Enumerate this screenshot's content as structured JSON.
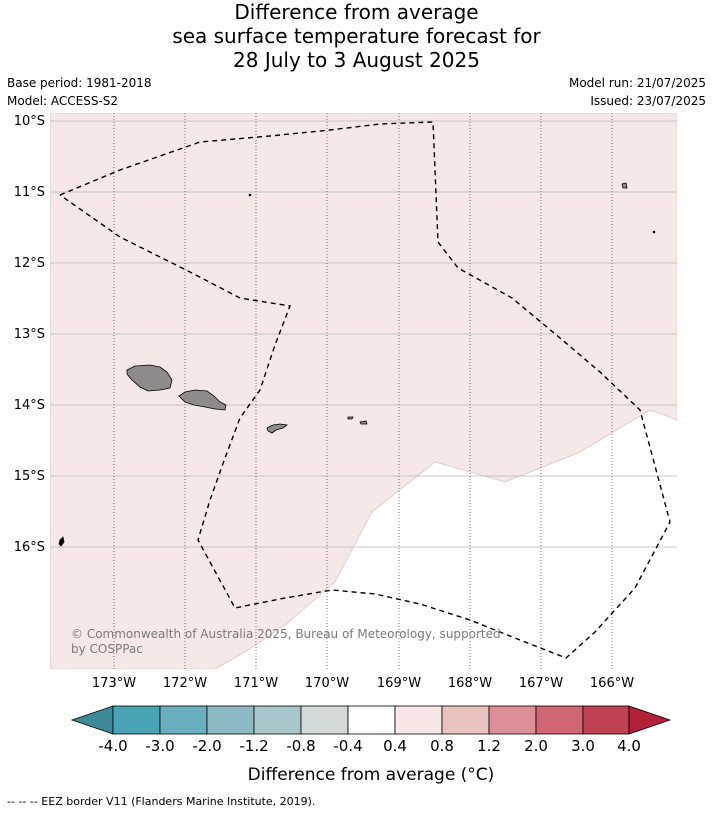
{
  "title": {
    "line1": "Difference from average",
    "line2": "sea surface temperature forecast for",
    "line3": "28 July to 3 August 2025"
  },
  "meta": {
    "base_period": "Base period: 1981-2018",
    "model": "Model: ACCESS-S2",
    "model_run": "Model run: 21/07/2025",
    "issued": "Issued: 23/07/2025"
  },
  "map": {
    "lat_labels": [
      "10°S",
      "11°S",
      "12°S",
      "13°S",
      "14°S",
      "15°S",
      "16°S"
    ],
    "lon_labels": [
      "173°W",
      "172°W",
      "171°W",
      "170°W",
      "169°W",
      "168°W",
      "167°W",
      "166°W"
    ],
    "copyright_line1": "© Commonwealth of Australia 2025, Bureau of Meteorology, supported",
    "copyright_line2": "by COSPPac",
    "colors": {
      "anomaly_fill": "#f5e8e7",
      "land": "#8f8b8a",
      "gridline": "#b9b9b9",
      "eez_border": "#000000"
    }
  },
  "colorbar": {
    "colors": [
      "#3f8a98",
      "#4aa3b4",
      "#6aafbe",
      "#8bbac4",
      "#a9c6ca",
      "#d4dada",
      "#ffffff",
      "#f6e6e5",
      "#e9c3c0",
      "#dc8f96",
      "#cf6672",
      "#c0414f",
      "#b32039"
    ],
    "tick_labels": [
      "-4.0",
      "-3.0",
      "-2.0",
      "-1.2",
      "-0.8",
      "-0.4",
      "0.4",
      "0.8",
      "1.2",
      "2.0",
      "3.0",
      "4.0"
    ],
    "label": "Difference from average (°C)"
  },
  "legend_note": "--  --  -- EEZ border V11 (Flanders Marine Institute, 2019)."
}
